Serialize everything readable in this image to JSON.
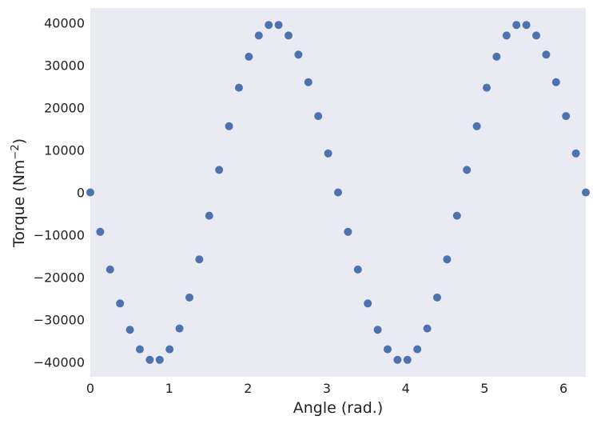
{
  "chart_data": {
    "type": "scatter",
    "xlabel": "Angle (rad.)",
    "ylabel_base": "Torque (Nm",
    "ylabel_exp": "−2",
    "ylabel_close": ")",
    "xlim": [
      0,
      6.2832
    ],
    "ylim": [
      -43500,
      43500
    ],
    "x_ticks": [
      0,
      1,
      2,
      3,
      4,
      5,
      6
    ],
    "x_tick_labels": [
      "0",
      "1",
      "2",
      "3",
      "4",
      "5",
      "6"
    ],
    "y_ticks": [
      -40000,
      -30000,
      -20000,
      -10000,
      0,
      10000,
      20000,
      30000,
      40000
    ],
    "y_tick_labels": [
      "−40000",
      "−30000",
      "−20000",
      "−10000",
      "0",
      "10000",
      "20000",
      "30000",
      "40000"
    ],
    "grid": false,
    "background_color": "#eaeaf2",
    "marker_color": "#4c72b0",
    "series": [
      {
        "x": [
          0.0,
          0.1257,
          0.2513,
          0.377,
          0.5027,
          0.6283,
          0.754,
          0.8796,
          1.0053,
          1.131,
          1.2566,
          1.3823,
          1.508,
          1.6336,
          1.7593,
          1.885,
          2.0106,
          2.1363,
          2.2619,
          2.3876,
          2.5133,
          2.6389,
          2.7646,
          2.8903,
          3.0159,
          3.1416,
          3.2673,
          3.3929,
          3.5186,
          3.6442,
          3.7699,
          3.8956,
          4.0212,
          4.1469,
          4.2726,
          4.3982,
          4.5239,
          4.6496,
          4.7752,
          4.9009,
          5.0265,
          5.1522,
          5.2779,
          5.4035,
          5.5292,
          5.6549,
          5.7805,
          5.9062,
          6.0319,
          6.1575,
          6.2832
        ],
        "y": [
          0,
          -9300,
          -18200,
          -26200,
          -32400,
          -37000,
          -39500,
          -39500,
          -37000,
          -32100,
          -24800,
          -15800,
          -5500,
          5300,
          15600,
          24700,
          32000,
          37000,
          39500,
          39500,
          37000,
          32500,
          26000,
          18000,
          9200,
          0,
          -9300,
          -18200,
          -26200,
          -32400,
          -37000,
          -39500,
          -39500,
          -37000,
          -32100,
          -24800,
          -15800,
          -5500,
          5300,
          15600,
          24700,
          32000,
          37000,
          39500,
          39500,
          37000,
          32500,
          26000,
          18000,
          9200,
          0
        ]
      }
    ]
  }
}
